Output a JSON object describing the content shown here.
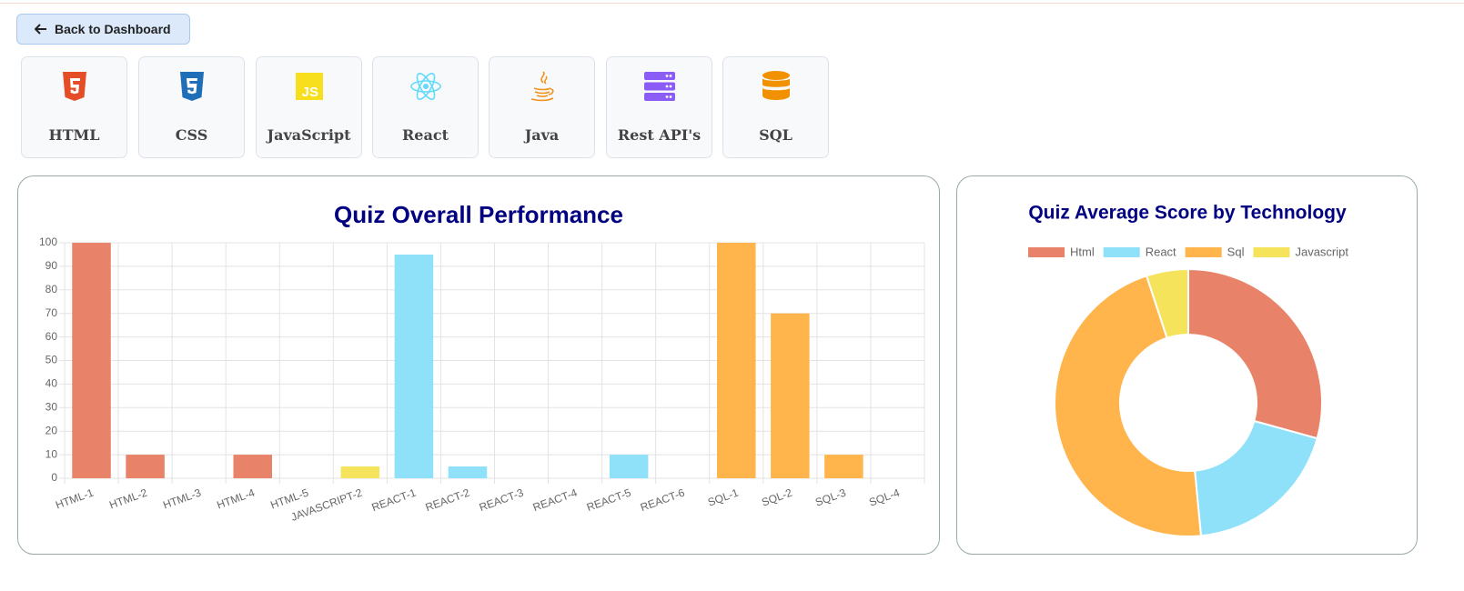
{
  "back_button": "Back to Dashboard",
  "tech_cards": [
    {
      "label": "HTML"
    },
    {
      "label": "CSS"
    },
    {
      "label": "JavaScript",
      "icon_text": "JS"
    },
    {
      "label": "React"
    },
    {
      "label": "Java"
    },
    {
      "label": "Rest API's"
    },
    {
      "label": "SQL"
    }
  ],
  "chart_data": [
    {
      "type": "bar",
      "title": "Quiz Overall Performance",
      "categories": [
        "HTML-1",
        "HTML-2",
        "HTML-3",
        "HTML-4",
        "HTML-5",
        "JAVASCRIPT-2",
        "REACT-1",
        "REACT-2",
        "REACT-3",
        "REACT-4",
        "REACT-5",
        "REACT-6",
        "SQL-1",
        "SQL-2",
        "SQL-3",
        "SQL-4"
      ],
      "values": [
        100,
        10,
        0,
        10,
        0,
        5,
        95,
        5,
        0,
        0,
        10,
        0,
        100,
        70,
        10,
        0
      ],
      "colors": [
        "#e8836a",
        "#e8836a",
        "#e8836a",
        "#e8836a",
        "#e8836a",
        "#f5e35c",
        "#8fe1f9",
        "#8fe1f9",
        "#8fe1f9",
        "#8fe1f9",
        "#8fe1f9",
        "#8fe1f9",
        "#ffb54c",
        "#ffb54c",
        "#ffb54c",
        "#ffb54c"
      ],
      "ylim": [
        0,
        100
      ],
      "yticks": [
        0,
        10,
        20,
        30,
        40,
        50,
        60,
        70,
        80,
        90,
        100
      ],
      "grid": true
    },
    {
      "type": "pie",
      "title": "Quiz Average Score by Technology",
      "donut": true,
      "categories": [
        "Html",
        "React",
        "Sql",
        "Javascript"
      ],
      "values": [
        29,
        19,
        46,
        5
      ],
      "colors": [
        "#e8836a",
        "#8fe1f9",
        "#ffb54c",
        "#f5e35c"
      ],
      "legend": "top"
    }
  ]
}
